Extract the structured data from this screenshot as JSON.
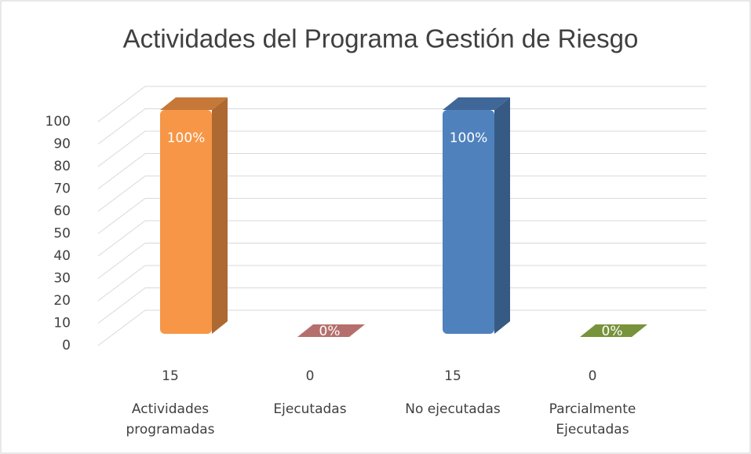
{
  "chart_data": {
    "type": "bar3d",
    "title": "Actividades del Programa Gestión de Riesgo",
    "categories": [
      "Actividades programadas",
      "Ejecutadas",
      "No ejecutadas",
      "Parcialmente Ejecutadas"
    ],
    "counts": [
      "15",
      "0",
      "15",
      "0"
    ],
    "values": [
      100,
      0,
      100,
      0
    ],
    "value_labels": [
      "100%",
      "0%",
      "100%",
      "0%"
    ],
    "colors": [
      "#f79646",
      "#b5706d",
      "#4f81bd",
      "#77933c"
    ],
    "ylim": [
      0,
      100
    ],
    "yticks": [
      0,
      10,
      20,
      30,
      40,
      50,
      60,
      70,
      80,
      90,
      100
    ],
    "grid": true
  }
}
